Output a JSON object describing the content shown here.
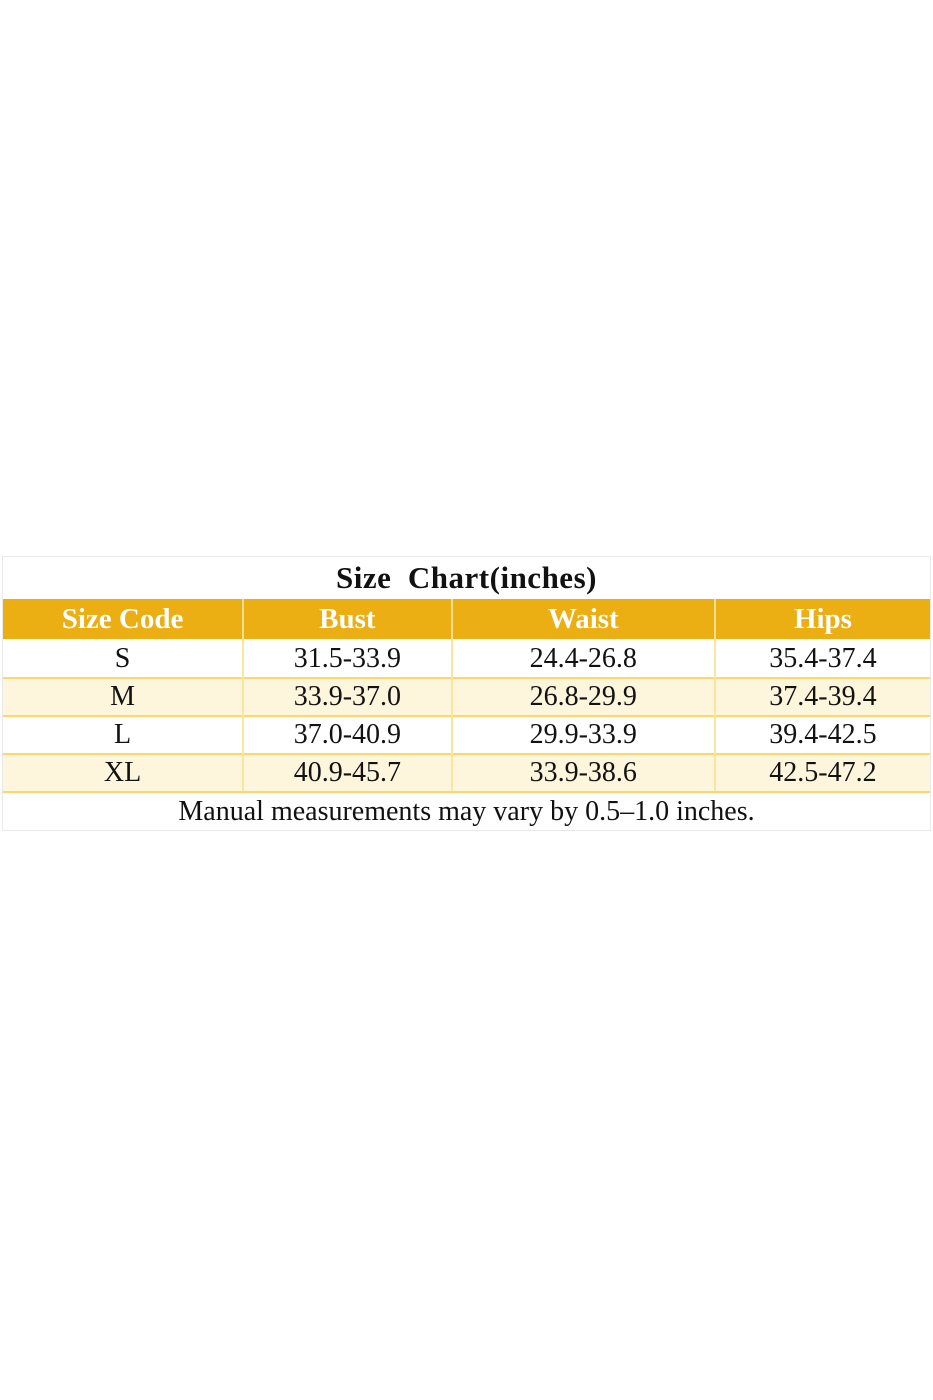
{
  "size_chart": {
    "title": "Size  Chart(inches)",
    "columns": {
      "size_code": "Size Code",
      "bust": "Bust",
      "waist": "Waist",
      "hips": "Hips"
    },
    "rows": [
      [
        "S",
        "31.5-33.9",
        "24.4-26.8",
        "35.4-37.4"
      ],
      [
        "M",
        "33.9-37.0",
        "26.8-29.9",
        "37.4-39.4"
      ],
      [
        "L",
        "37.0-40.9",
        "29.9-33.9",
        "39.4-42.5"
      ],
      [
        "XL",
        "40.9-45.7",
        "33.9-38.6",
        "42.5-47.2"
      ]
    ],
    "footnote": "Manual measurements may vary by 0.5–1.0 inches.",
    "colors": {
      "header_bg": "#ebae13",
      "header_text": "#ffffff",
      "alt_row_bg": "#fdf5dc",
      "grid_line": "#fbd76e",
      "outer_border": "#e9e9e9",
      "body_text": "#111111"
    }
  },
  "chart_data": {
    "type": "table",
    "title": "Size Chart(inches)",
    "columns": [
      "Size Code",
      "Bust",
      "Waist",
      "Hips"
    ],
    "rows": [
      [
        "S",
        "31.5-33.9",
        "24.4-26.8",
        "35.4-37.4"
      ],
      [
        "M",
        "33.9-37.0",
        "26.8-29.9",
        "37.4-39.4"
      ],
      [
        "L",
        "37.0-40.9",
        "29.9-33.9",
        "39.4-42.5"
      ],
      [
        "XL",
        "40.9-45.7",
        "33.9-38.6",
        "42.5-47.2"
      ]
    ],
    "footnote": "Manual measurements may vary by 0.5–1.0 inches.",
    "units": "inches",
    "layout": {
      "header_fill": "#ebae13",
      "zebra_fill": "#fdf5dc",
      "grid": true
    }
  }
}
